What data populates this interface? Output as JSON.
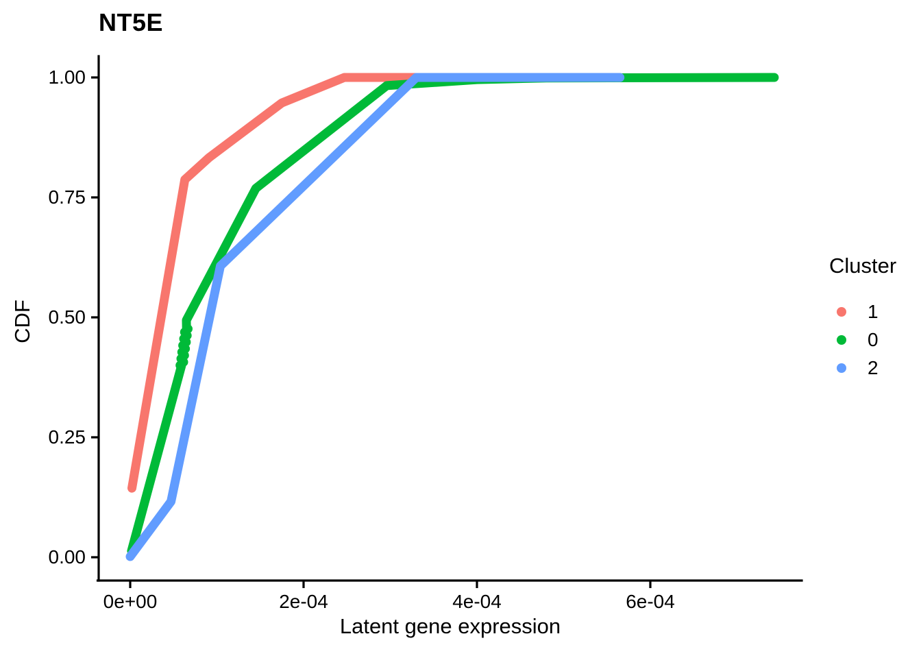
{
  "title": "NT5E",
  "legend": {
    "title": "Cluster",
    "items": [
      {
        "label": "1",
        "color": "#F8766D"
      },
      {
        "label": "0",
        "color": "#00BA38"
      },
      {
        "label": "2",
        "color": "#619CFF"
      }
    ]
  },
  "chart_data": {
    "type": "line",
    "title": "NT5E",
    "xlabel": "Latent gene expression",
    "ylabel": "CDF",
    "xlim": [
      0,
      0.00078
    ],
    "ylim": [
      0,
      1
    ],
    "grid": false,
    "legend_position": "right",
    "legend_title": "Cluster",
    "xticks": {
      "labels": [
        "0e+00",
        "2e-04",
        "4e-04",
        "6e-04"
      ],
      "values": [
        0,
        0.0002,
        0.0004,
        0.0006
      ]
    },
    "yticks": {
      "labels": [
        "0.00",
        "0.25",
        "0.50",
        "0.75",
        "1.00"
      ],
      "values": [
        0,
        0.25,
        0.5,
        0.75,
        1
      ]
    },
    "series": [
      {
        "name": "1",
        "color": "#F8766D",
        "points": [
          [
            2e-06,
            0.144
          ],
          [
            6.3e-05,
            0.787
          ],
          [
            9.1e-05,
            0.833
          ],
          [
            0.000175,
            0.947
          ],
          [
            0.000247,
            1.0
          ],
          [
            0.00033,
            1.0
          ]
        ]
      },
      {
        "name": "0",
        "color": "#00BA38",
        "points": [
          [
            1.5e-06,
            0.013
          ],
          [
            5.93e-05,
            0.4
          ],
          [
            6.5e-05,
            0.476
          ],
          [
            6.48e-05,
            0.494
          ],
          [
            0.000145,
            0.769
          ],
          [
            0.000296,
            0.983
          ],
          [
            0.0004,
            0.9955
          ],
          [
            0.00048,
            0.999
          ],
          [
            0.000743,
            1.0
          ]
        ],
        "overplot_dots": {
          "from": [
            5.93e-05,
            0.4
          ],
          "to": [
            6.5e-05,
            0.476
          ],
          "count": 12
        }
      },
      {
        "name": "2",
        "color": "#619CFF",
        "points": [
          [
            0.0,
            0.0015
          ],
          [
            4.7e-05,
            0.116
          ],
          [
            0.000104,
            0.607
          ],
          [
            0.00033,
            1.0
          ],
          [
            0.000565,
            1.0
          ]
        ]
      }
    ]
  }
}
